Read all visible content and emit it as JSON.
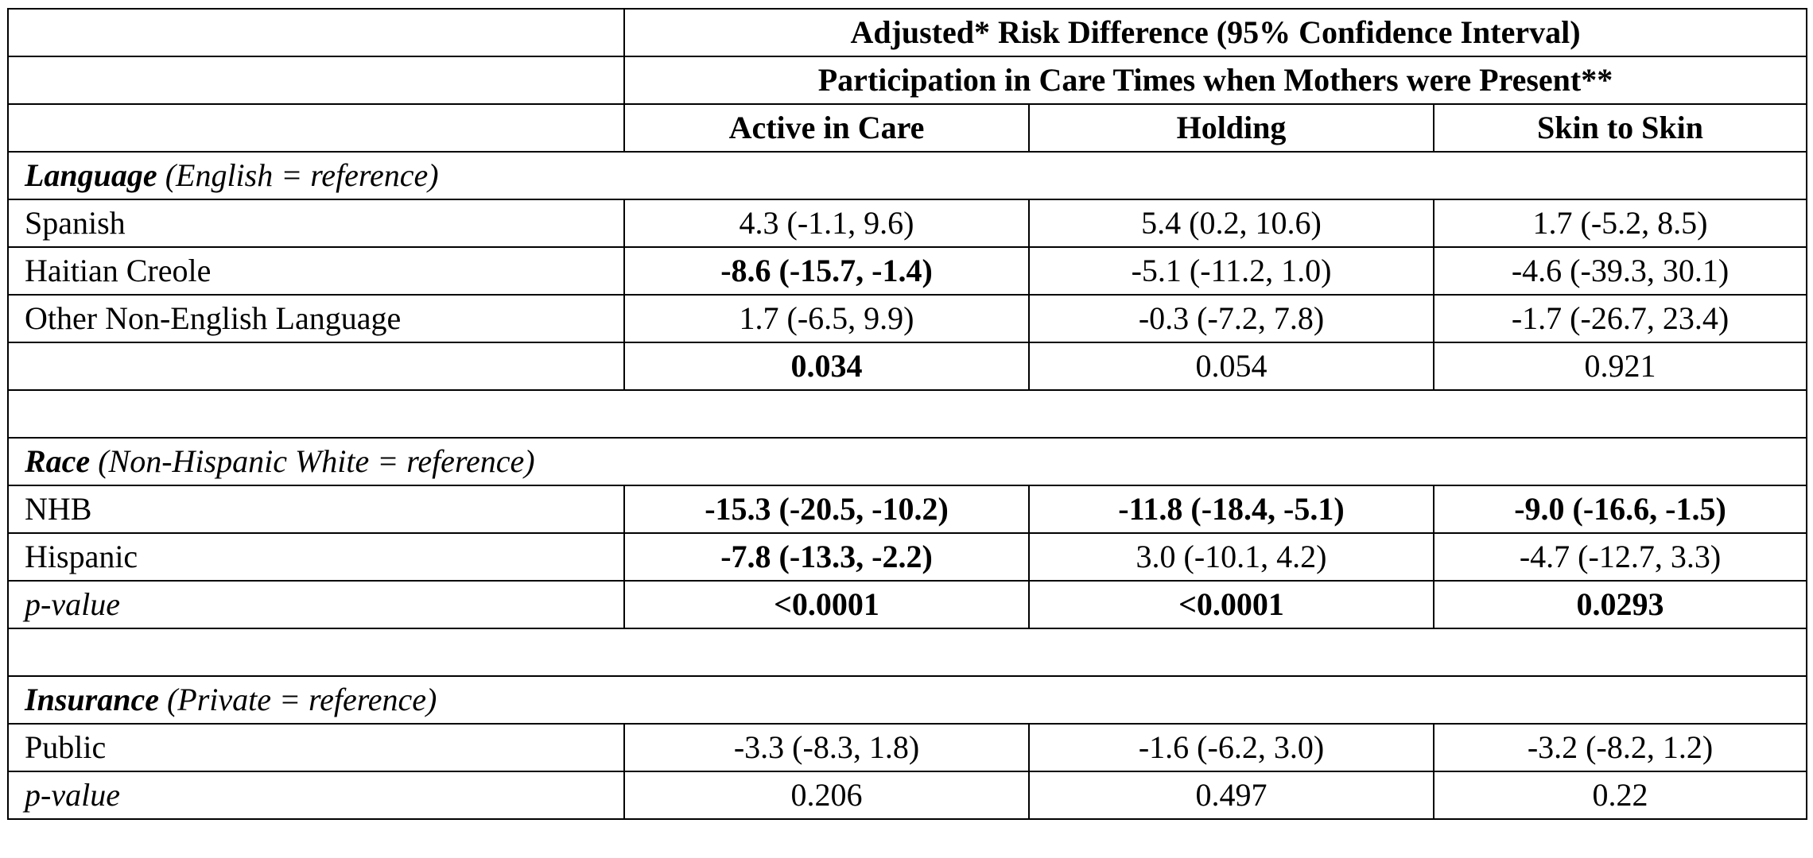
{
  "header": {
    "title": "Adjusted* Risk Difference (95% Confidence Interval)",
    "subtitle": "Participation in Care Times when Mothers were Present**",
    "columns": [
      "Active in Care",
      "Holding",
      "Skin to Skin"
    ]
  },
  "language": {
    "label": "Language",
    "reference": " (English = reference)",
    "rows": [
      {
        "name": "Spanish",
        "values": [
          "4.3 (-1.1, 9.6)",
          "5.4 (0.2, 10.6)",
          "1.7 (-5.2, 8.5)"
        ]
      },
      {
        "name": "Haitian Creole",
        "values": [
          "-8.6 (-15.7, -1.4)",
          "-5.1 (-11.2, 1.0)",
          "-4.6 (-39.3, 30.1)"
        ]
      },
      {
        "name": "Other Non-English Language",
        "values": [
          "1.7 (-6.5, 9.9)",
          "-0.3 (-7.2, 7.8)",
          "-1.7 (-26.7, 23.4)"
        ]
      }
    ],
    "p_values": [
      "0.034",
      "0.054",
      "0.921"
    ]
  },
  "race": {
    "label": "Race",
    "reference": " (Non-Hispanic White = reference)",
    "rows": [
      {
        "name": "NHB",
        "values": [
          "-15.3 (-20.5, -10.2)",
          "-11.8 (-18.4, -5.1)",
          "-9.0 (-16.6, -1.5)"
        ]
      },
      {
        "name": "Hispanic",
        "values": [
          "-7.8 (-13.3, -2.2)",
          "3.0 (-10.1, 4.2)",
          "-4.7 (-12.7, 3.3)"
        ]
      }
    ],
    "p_label": "p-value",
    "p_values": [
      "<0.0001",
      "<0.0001",
      "0.0293"
    ]
  },
  "insurance": {
    "label": "Insurance",
    "reference": " (Private = reference)",
    "rows": [
      {
        "name": "Public",
        "values": [
          "-3.3 (-8.3, 1.8)",
          "-1.6 (-6.2, 3.0)",
          "-3.2 (-8.2, 1.2)"
        ]
      }
    ],
    "p_label": "p-value",
    "p_values": [
      "0.206",
      "0.497",
      "0.22"
    ]
  }
}
